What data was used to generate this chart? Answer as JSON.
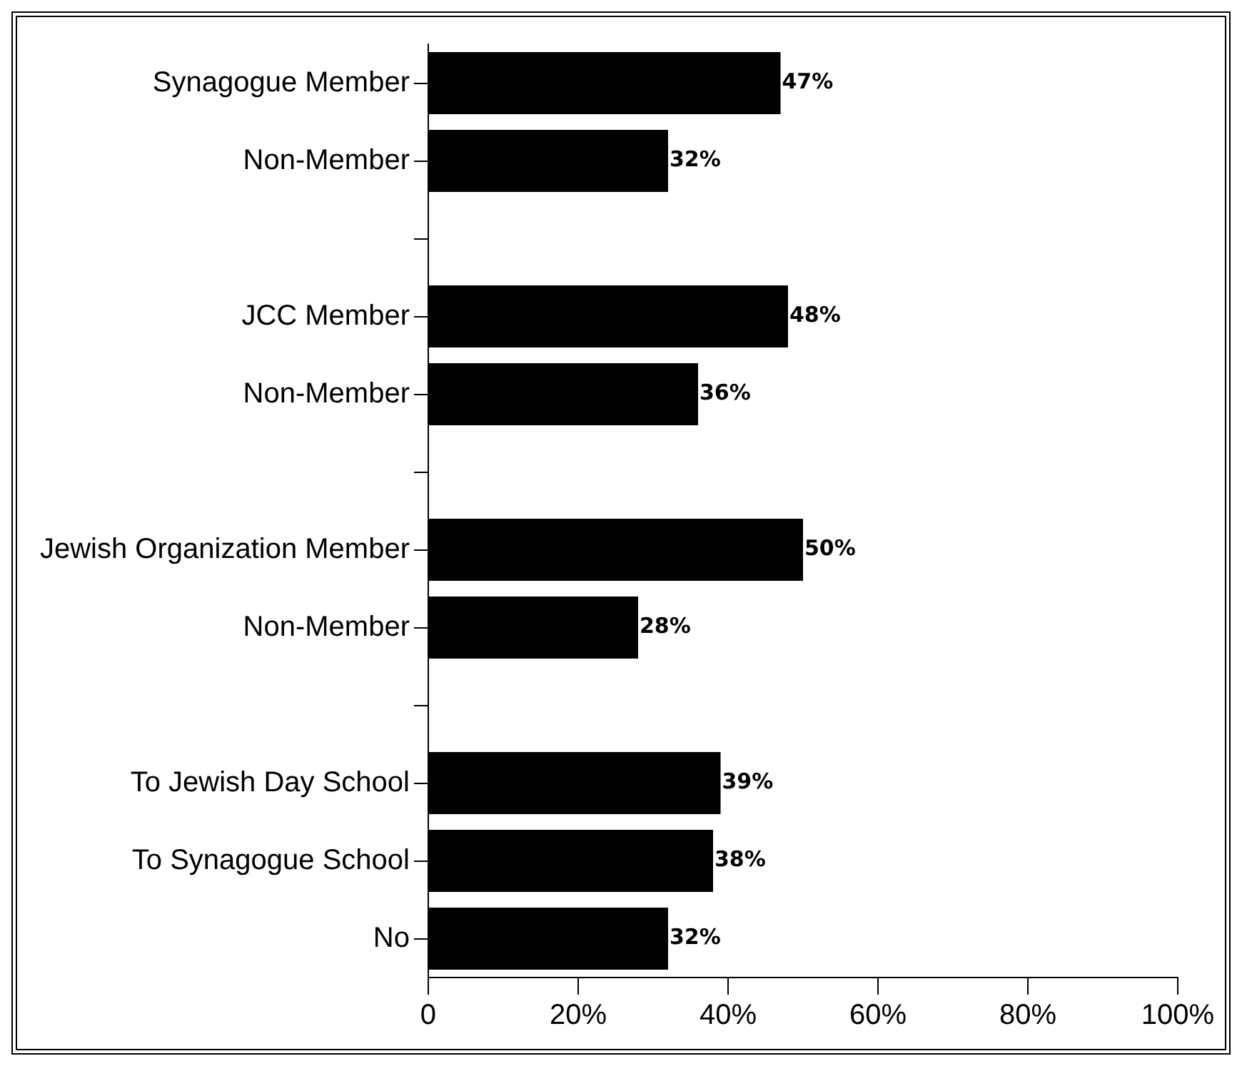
{
  "chart_data": {
    "type": "bar",
    "orientation": "horizontal",
    "categories": [
      "Synagogue Member",
      "Non-Member",
      null,
      "JCC Member",
      "Non-Member",
      null,
      "Jewish Organization Member",
      "Non-Member",
      null,
      "To Jewish Day School",
      "To Synagogue School",
      "No"
    ],
    "series": [
      {
        "color": "#000000",
        "values": [
          47,
          32,
          null,
          48,
          36,
          null,
          50,
          28,
          null,
          39,
          38,
          32
        ]
      }
    ],
    "value_labels": [
      "47%",
      "32%",
      null,
      "48%",
      "36%",
      null,
      "50%",
      "28%",
      null,
      "39%",
      "38%",
      "32%"
    ],
    "xlim": [
      0,
      100
    ],
    "xticks": [
      0,
      {
        "value": 20,
        "label": "20%"
      },
      {
        "value": 40,
        "label": "40%"
      },
      {
        "value": 60,
        "label": "60%"
      },
      {
        "value": 80,
        "label": "80%"
      },
      {
        "value": 100,
        "label": "100%"
      }
    ],
    "grid": false,
    "legend": false
  }
}
